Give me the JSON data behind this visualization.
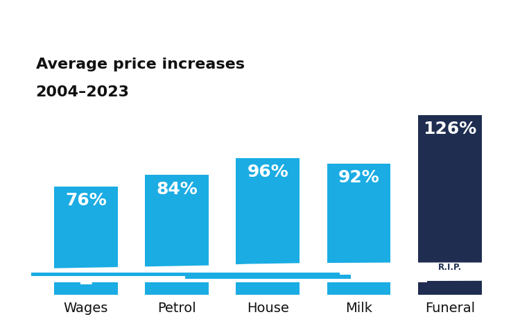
{
  "categories": [
    "Wages",
    "Petrol",
    "House",
    "Milk",
    "Funeral"
  ],
  "values": [
    76,
    84,
    96,
    92,
    126
  ],
  "bar_colors": [
    "#1AACE3",
    "#1AACE3",
    "#1AACE3",
    "#1AACE3",
    "#1E2D50"
  ],
  "funeral_color": "#1E2D50",
  "label_color": "#ffffff",
  "title_line1": "Average price increases",
  "title_line2": "2004–2023",
  "title_fontsize": 16,
  "label_fontsize": 18,
  "xlabel_fontsize": 14,
  "background_color": "#ffffff",
  "ylim_max": 155,
  "bar_width": 0.7
}
